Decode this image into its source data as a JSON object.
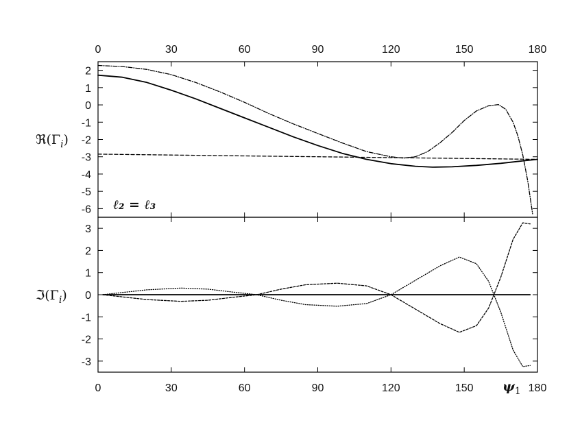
{
  "chart_data": [
    {
      "type": "line",
      "panel": "top",
      "ylabel": "ℜ(Γ",
      "ylabel_sub": "i",
      "ylabel_close": ")",
      "annotation": "ℓ₂ = ℓ₃",
      "xlim": [
        0,
        180
      ],
      "ylim": [
        -6.5,
        2.5
      ],
      "x_ticks": [
        "0",
        "30",
        "60",
        "90",
        "120",
        "150",
        "180"
      ],
      "y_ticks": [
        "2",
        "1",
        "0",
        "-1",
        "-2",
        "-3",
        "-4",
        "-5",
        "-6"
      ],
      "x_ticks_position": "top",
      "grid": false,
      "series": [
        {
          "style": "solid",
          "x": [
            0,
            10,
            20,
            30,
            40,
            50,
            60,
            70,
            80,
            90,
            100,
            110,
            120,
            130,
            137,
            145,
            155,
            165,
            175,
            180
          ],
          "y": [
            1.72,
            1.6,
            1.3,
            0.85,
            0.35,
            -0.2,
            -0.75,
            -1.3,
            -1.85,
            -2.35,
            -2.8,
            -3.15,
            -3.4,
            -3.55,
            -3.6,
            -3.58,
            -3.5,
            -3.38,
            -3.22,
            -3.15
          ]
        },
        {
          "style": "dashed",
          "x": [
            0,
            30,
            60,
            90,
            120,
            150,
            180
          ],
          "y": [
            -2.85,
            -2.9,
            -2.95,
            -3.0,
            -3.05,
            -3.1,
            -3.15
          ]
        },
        {
          "style": "dotdash",
          "x": [
            0,
            10,
            20,
            30,
            40,
            50,
            60,
            70,
            80,
            90,
            100,
            110,
            120,
            125,
            130,
            135,
            140,
            145,
            150,
            155,
            160,
            164,
            167,
            170,
            172,
            174,
            176,
            178
          ],
          "y": [
            2.28,
            2.22,
            2.05,
            1.75,
            1.3,
            0.75,
            0.15,
            -0.5,
            -1.1,
            -1.65,
            -2.2,
            -2.7,
            -3.0,
            -3.08,
            -3.0,
            -2.7,
            -2.2,
            -1.6,
            -0.9,
            -0.35,
            -0.05,
            0.02,
            -0.25,
            -1.0,
            -1.8,
            -2.9,
            -4.4,
            -6.3
          ]
        }
      ]
    },
    {
      "type": "line",
      "panel": "bottom",
      "ylabel": "ℑ(Γ",
      "ylabel_sub": "i",
      "ylabel_close": ")",
      "xlabel": "ψ",
      "xlabel_sub": "1",
      "xlim": [
        0,
        180
      ],
      "ylim": [
        -3.5,
        3.5
      ],
      "x_ticks": [
        "0",
        "30",
        "60",
        "90",
        "120",
        "150",
        "180"
      ],
      "y_ticks": [
        "3",
        "2",
        "1",
        "0",
        "-1",
        "-2",
        "-3"
      ],
      "x_ticks_position": "bottom",
      "grid": false,
      "series": [
        {
          "style": "solid",
          "x": [
            2,
            177
          ],
          "y": [
            0,
            0
          ]
        },
        {
          "style": "dotted",
          "x": [
            2,
            10,
            20,
            34,
            45,
            55,
            65,
            75,
            85,
            98,
            110,
            120,
            130,
            140,
            148,
            155,
            160,
            165,
            170,
            174,
            177
          ],
          "y": [
            0,
            0.1,
            0.22,
            0.3,
            0.25,
            0.12,
            0,
            -0.25,
            -0.45,
            -0.52,
            -0.4,
            0,
            0.65,
            1.3,
            1.7,
            1.4,
            0.6,
            -0.8,
            -2.5,
            -3.25,
            -3.2
          ]
        },
        {
          "style": "dashed-fine",
          "x": [
            2,
            10,
            20,
            34,
            45,
            55,
            65,
            75,
            85,
            98,
            110,
            120,
            130,
            140,
            148,
            155,
            160,
            165,
            170,
            174,
            177
          ],
          "y": [
            0,
            -0.1,
            -0.22,
            -0.3,
            -0.25,
            -0.12,
            0,
            0.25,
            0.45,
            0.52,
            0.4,
            0,
            -0.65,
            -1.3,
            -1.7,
            -1.4,
            -0.6,
            0.8,
            2.5,
            3.25,
            3.2
          ]
        }
      ]
    }
  ]
}
